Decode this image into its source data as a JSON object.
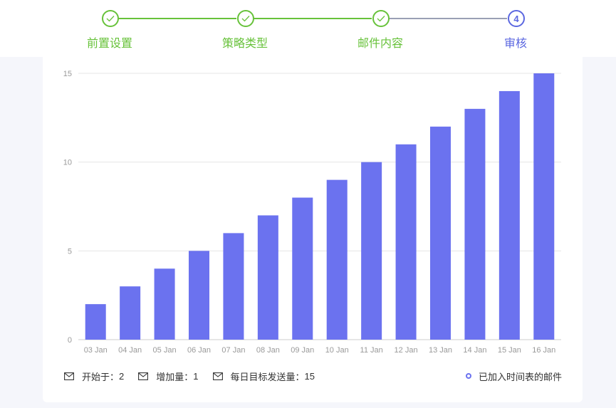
{
  "steps": [
    {
      "label": "前置设置",
      "status": "done"
    },
    {
      "label": "策略类型",
      "status": "done"
    },
    {
      "label": "邮件内容",
      "status": "done"
    },
    {
      "label": "审核",
      "number": "4",
      "status": "active"
    }
  ],
  "colors": {
    "done": "#67c23a",
    "active": "#5b67e0",
    "pending_line": "#9aa0b4",
    "bar": "#6b72ef",
    "grid": "#e4e4e4",
    "axis_text": "#999999"
  },
  "stats": [
    {
      "icon": "mail-icon",
      "label": "开始于：",
      "value": "2"
    },
    {
      "icon": "mail-icon",
      "label": "增加量：",
      "value": "1"
    },
    {
      "icon": "mail-icon",
      "label": "每日目标发送量：",
      "value": "15"
    }
  ],
  "legend": {
    "label": "已加入时间表的邮件"
  },
  "chart_data": {
    "type": "bar",
    "categories": [
      "03 Jan",
      "04 Jan",
      "05 Jan",
      "06 Jan",
      "07 Jan",
      "08 Jan",
      "09 Jan",
      "10 Jan",
      "11 Jan",
      "12 Jan",
      "13 Jan",
      "14 Jan",
      "15 Jan",
      "16 Jan"
    ],
    "series": [
      {
        "name": "已加入时间表的邮件",
        "values": [
          2,
          3,
          4,
          5,
          6,
          7,
          8,
          9,
          10,
          11,
          12,
          13,
          14,
          15
        ]
      }
    ],
    "ylim": [
      0,
      15
    ],
    "yticks": [
      "0",
      "5",
      "10",
      "15"
    ],
    "grid": true,
    "legend_position": "bottom-right"
  }
}
